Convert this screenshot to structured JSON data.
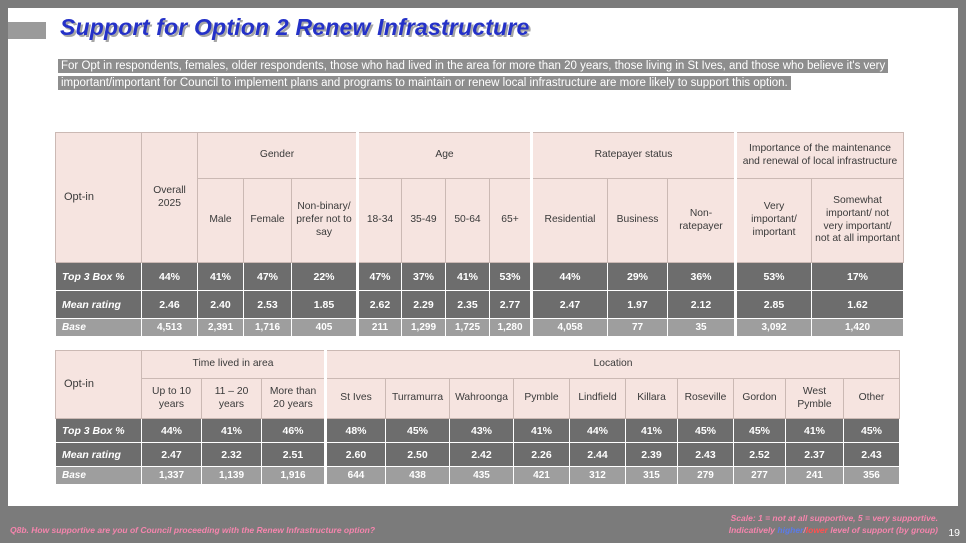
{
  "slide": {
    "title": "Support for Option 2 Renew Infrastructure",
    "intro": "For Opt in respondents, females, older respondents, those who had lived in the area for more than 20 years, those living in St Ives, and those who believe it's very important/important for Council to implement plans and programs to maintain or renew local infrastructure are more likely to support this option.",
    "page_number": "19"
  },
  "footer": {
    "question": "Q8b. How supportive are you of Council proceeding with the Renew Infrastructure option?",
    "scale_note": "Scale: 1 = not at all supportive, 5 = very supportive.",
    "indicative_prefix": "Indicatively ",
    "higher_label": "higher",
    "slash": "/",
    "lower_label": "lower",
    "indicative_suffix": " level of support (by group)"
  },
  "colors": {
    "higher_significant": "#7fa7f2",
    "lower_significant": "#ff4b4b",
    "header_pink": "#f6e4e0",
    "dark_row": "#6d6d6d",
    "base_row": "#9e9e9e",
    "title_blue": "#2431c8",
    "footnote_pink": "#f585ad"
  },
  "table1": {
    "sub_offset": 1,
    "gaps": [
      4,
      8,
      11
    ],
    "groups": [
      {
        "label": "Opt-in",
        "rows": 2,
        "corner": true
      },
      {
        "label": "Overall 2025",
        "rows": 2
      },
      {
        "label": "Gender",
        "span": 3
      },
      {
        "label": "Age",
        "span": 4,
        "gap": true
      },
      {
        "label": "Ratepayer status",
        "span": 3,
        "gap": true
      },
      {
        "label": "Importance of the maintenance and renewal of local infrastructure",
        "span": 2,
        "gap": true
      }
    ],
    "columns": [
      "Male",
      "Female",
      "Non-binary/ prefer not to say",
      "18-34",
      "35-49",
      "50-64",
      "65+",
      "Residential",
      "Business",
      "Non-ratepayer",
      "Very important/ important",
      "Somewhat important/ not very important/ not at all important"
    ],
    "rows": [
      {
        "label": "Top 3 Box %",
        "style": "dark",
        "cells": [
          {
            "v": "44%"
          },
          {
            "v": "41%"
          },
          {
            "v": "47%",
            "c": "hi"
          },
          {
            "v": "22%",
            "c": "lo"
          },
          {
            "v": "47%",
            "c": "hi"
          },
          {
            "v": "37%",
            "c": "lo"
          },
          {
            "v": "41%",
            "c": "lo"
          },
          {
            "v": "53%",
            "c": "hi"
          },
          {
            "v": "44%"
          },
          {
            "v": "29%",
            "c": "lo"
          },
          {
            "v": "36%"
          },
          {
            "v": "53%",
            "c": "hi"
          },
          {
            "v": "17%",
            "c": "lo"
          }
        ]
      },
      {
        "label": "Mean rating",
        "style": "dark",
        "cells": [
          {
            "v": "2.46"
          },
          {
            "v": "2.40"
          },
          {
            "v": "2.53",
            "c": "hi"
          },
          {
            "v": "1.85",
            "c": "lo"
          },
          {
            "v": "2.62",
            "c": "hi"
          },
          {
            "v": "2.29",
            "c": "lo"
          },
          {
            "v": "2.35",
            "c": "lo"
          },
          {
            "v": "2.77",
            "c": "hi"
          },
          {
            "v": "2.47"
          },
          {
            "v": "1.97",
            "c": "lo"
          },
          {
            "v": "2.12"
          },
          {
            "v": "2.85",
            "c": "hi"
          },
          {
            "v": "1.62",
            "c": "lo"
          }
        ]
      },
      {
        "label": "Base",
        "style": "base",
        "cells": [
          {
            "v": "4,513"
          },
          {
            "v": "2,391"
          },
          {
            "v": "1,716"
          },
          {
            "v": "405"
          },
          {
            "v": "211"
          },
          {
            "v": "1,299"
          },
          {
            "v": "1,725"
          },
          {
            "v": "1,280"
          },
          {
            "v": "4,058"
          },
          {
            "v": "77"
          },
          {
            "v": "35"
          },
          {
            "v": "3,092"
          },
          {
            "v": "1,420"
          }
        ]
      }
    ]
  },
  "table2": {
    "sub_offset": 0,
    "gaps": [
      3
    ],
    "groups": [
      {
        "label": "Opt-in",
        "rows": 2,
        "corner": true
      },
      {
        "label": "Time lived in area",
        "span": 3
      },
      {
        "label": "Location",
        "span": 10,
        "gap": true
      }
    ],
    "columns": [
      "Up to 10 years",
      "11 – 20 years",
      "More than 20 years",
      "St Ives",
      "Turramurra",
      "Wahroonga",
      "Pymble",
      "Lindfield",
      "Killara",
      "Roseville",
      "Gordon",
      "West Pymble",
      "Other"
    ],
    "rows": [
      {
        "label": "Top 3 Box %",
        "style": "dark",
        "cells": [
          {
            "v": "44%"
          },
          {
            "v": "41%",
            "c": "lo"
          },
          {
            "v": "46%",
            "c": "hi"
          },
          {
            "v": "48%",
            "c": "hi"
          },
          {
            "v": "45%"
          },
          {
            "v": "43%"
          },
          {
            "v": "41%"
          },
          {
            "v": "44%"
          },
          {
            "v": "41%"
          },
          {
            "v": "45%"
          },
          {
            "v": "45%"
          },
          {
            "v": "41%"
          },
          {
            "v": "45%"
          }
        ]
      },
      {
        "label": "Mean rating",
        "style": "dark",
        "cells": [
          {
            "v": "2.47"
          },
          {
            "v": "2.32",
            "c": "lo"
          },
          {
            "v": "2.51",
            "c": "hi"
          },
          {
            "v": "2.60",
            "c": "hi"
          },
          {
            "v": "2.50"
          },
          {
            "v": "2.42"
          },
          {
            "v": "2.26"
          },
          {
            "v": "2.44"
          },
          {
            "v": "2.39"
          },
          {
            "v": "2.43"
          },
          {
            "v": "2.52"
          },
          {
            "v": "2.37"
          },
          {
            "v": "2.43"
          }
        ]
      },
      {
        "label": "Base",
        "style": "base",
        "cells": [
          {
            "v": "1,337"
          },
          {
            "v": "1,139"
          },
          {
            "v": "1,916"
          },
          {
            "v": "644"
          },
          {
            "v": "438"
          },
          {
            "v": "435"
          },
          {
            "v": "421"
          },
          {
            "v": "312"
          },
          {
            "v": "315"
          },
          {
            "v": "279"
          },
          {
            "v": "277"
          },
          {
            "v": "241"
          },
          {
            "v": "356"
          }
        ]
      }
    ]
  }
}
